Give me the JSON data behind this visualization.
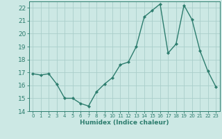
{
  "x": [
    0,
    1,
    2,
    3,
    4,
    5,
    6,
    7,
    8,
    9,
    10,
    11,
    12,
    13,
    14,
    15,
    16,
    17,
    18,
    19,
    20,
    21,
    22,
    23
  ],
  "y": [
    16.9,
    16.8,
    16.9,
    16.1,
    15.0,
    15.0,
    14.6,
    14.4,
    15.5,
    16.1,
    16.6,
    17.6,
    17.8,
    19.0,
    21.3,
    21.8,
    22.3,
    18.5,
    19.2,
    22.2,
    21.1,
    18.7,
    17.1,
    15.9
  ],
  "line_color": "#2d7d6e",
  "marker": "D",
  "marker_size": 2.2,
  "linewidth": 1.0,
  "bg_color": "#cce8e4",
  "grid_color": "#aaceca",
  "xlabel": "Humidex (Indice chaleur)",
  "ylim": [
    14,
    22.5
  ],
  "xlim": [
    -0.5,
    23.5
  ],
  "yticks": [
    14,
    15,
    16,
    17,
    18,
    19,
    20,
    21,
    22
  ],
  "xtick_labels": [
    "0",
    "1",
    "2",
    "3",
    "4",
    "5",
    "6",
    "7",
    "8",
    "9",
    "10",
    "11",
    "12",
    "13",
    "14",
    "15",
    "16",
    "17",
    "18",
    "19",
    "20",
    "21",
    "22",
    "23"
  ],
  "tick_color": "#2d7d6e",
  "label_color": "#2d7d6e",
  "axis_color": "#2d7d6e",
  "ytick_fontsize": 6.5,
  "xtick_fontsize": 5.0,
  "xlabel_fontsize": 6.5
}
